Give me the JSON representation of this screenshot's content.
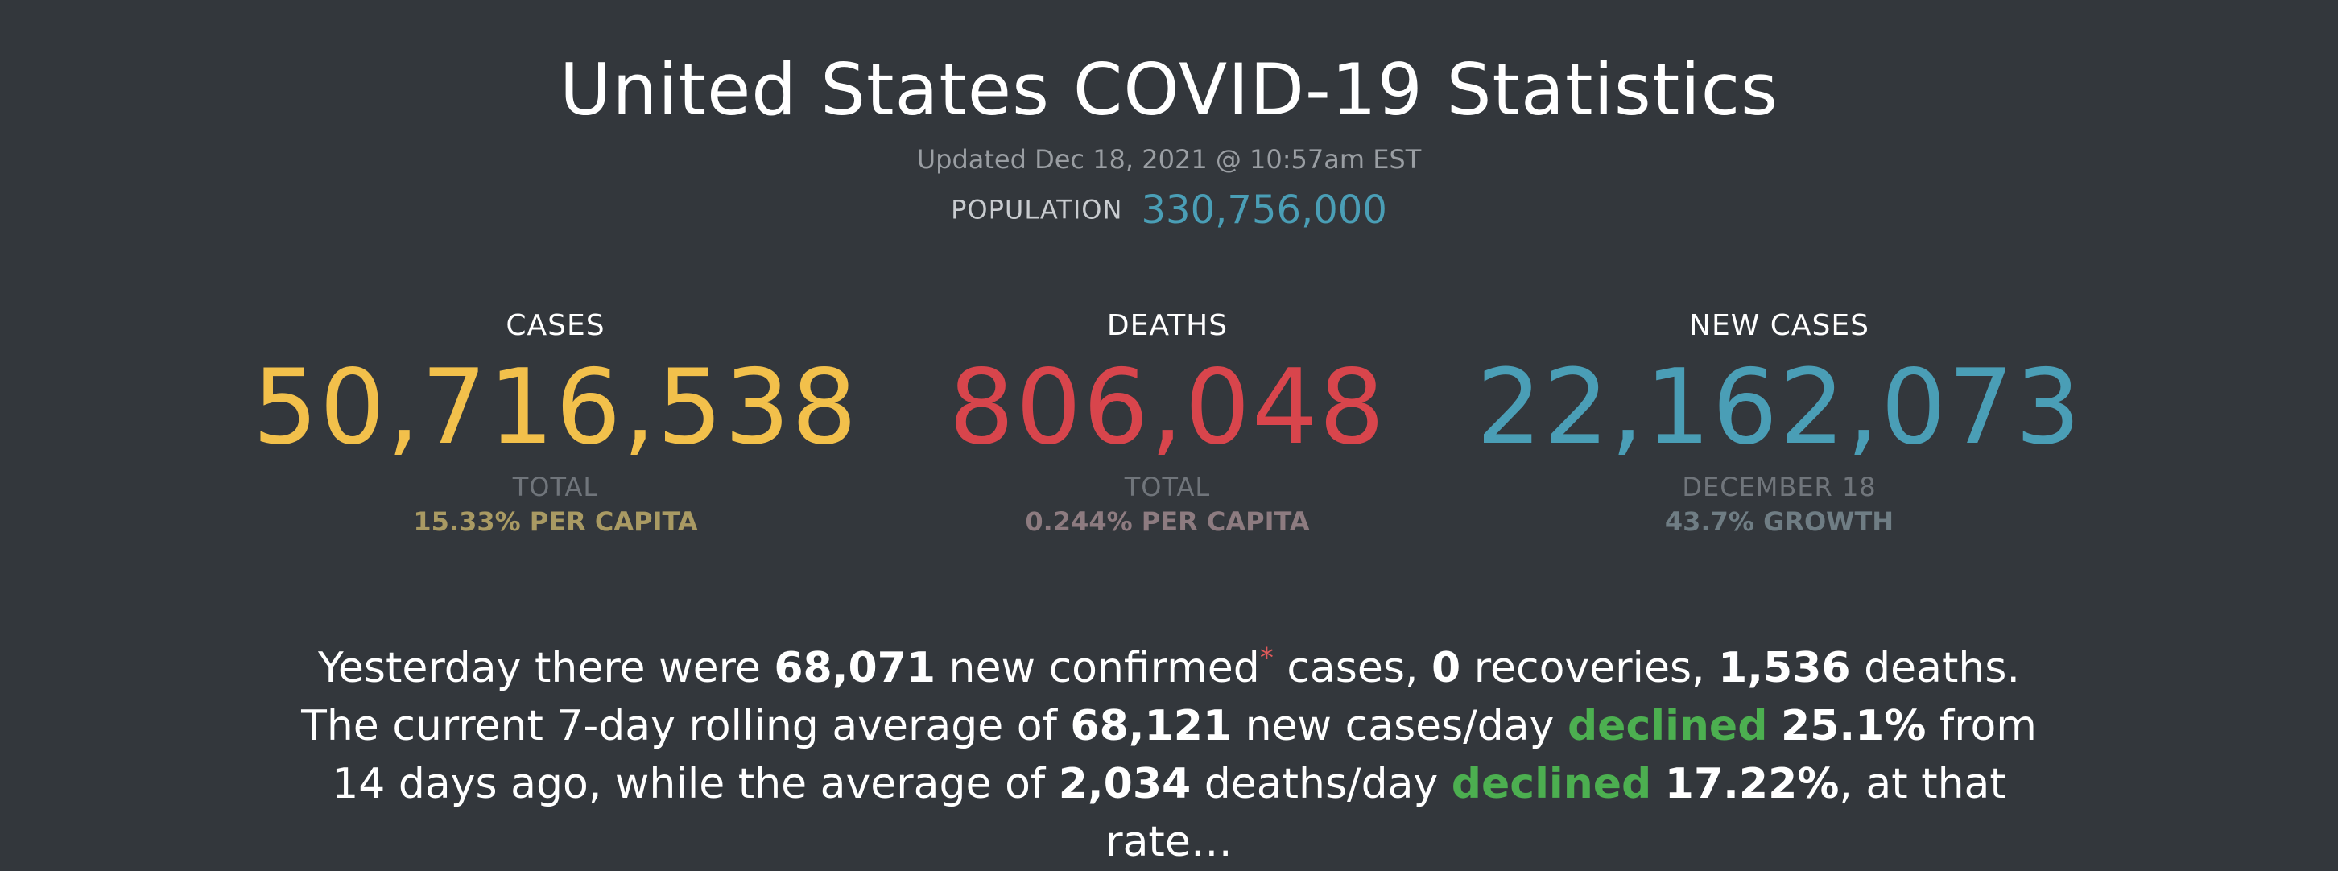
{
  "header": {
    "title": "United States COVID-19 Statistics",
    "updated": "Updated Dec 18, 2021 @ 10:57am EST",
    "population_label": "POPULATION",
    "population_value": "330,756,000"
  },
  "stats": [
    {
      "label": "CASES",
      "value": "50,716,538",
      "sub": "TOTAL",
      "sub2": "15.33% PER CAPITA",
      "color": "#f2c04b",
      "sub2_color": "#a99a63"
    },
    {
      "label": "DEATHS",
      "value": "806,048",
      "sub": "TOTAL",
      "sub2": "0.244% PER CAPITA",
      "color": "#d8454c",
      "sub2_color": "#8d7b80"
    },
    {
      "label": "NEW CASES",
      "value": "22,162,073",
      "sub": "DECEMBER 18",
      "sub2": "43.7% GROWTH",
      "color": "#4a9eb6",
      "sub2_color": "#6f7d84"
    }
  ],
  "summary": {
    "t1": "Yesterday there were ",
    "new_confirmed": "68,071",
    "t2": " new confirmed",
    "asterisk": "*",
    "t3": " cases, ",
    "recoveries": "0",
    "t4": " recoveries, ",
    "deaths": "1,536",
    "t5": " deaths. The current 7-day rolling average of ",
    "avg_cases": "68,121",
    "t6": " new cases/day ",
    "cases_trend": "declined",
    "t7": " ",
    "cases_pct": "25.1%",
    "t8": " from 14 days ago, while the average of ",
    "avg_deaths": "2,034",
    "t9": " deaths/day ",
    "deaths_trend": "declined",
    "t10": " ",
    "deaths_pct": "17.22%",
    "t11": ", at that rate…"
  },
  "colors": {
    "background": "#33373c",
    "cases": "#f2c04b",
    "deaths": "#d8454c",
    "new_cases": "#4a9eb6",
    "trend_green": "#4caf50"
  }
}
